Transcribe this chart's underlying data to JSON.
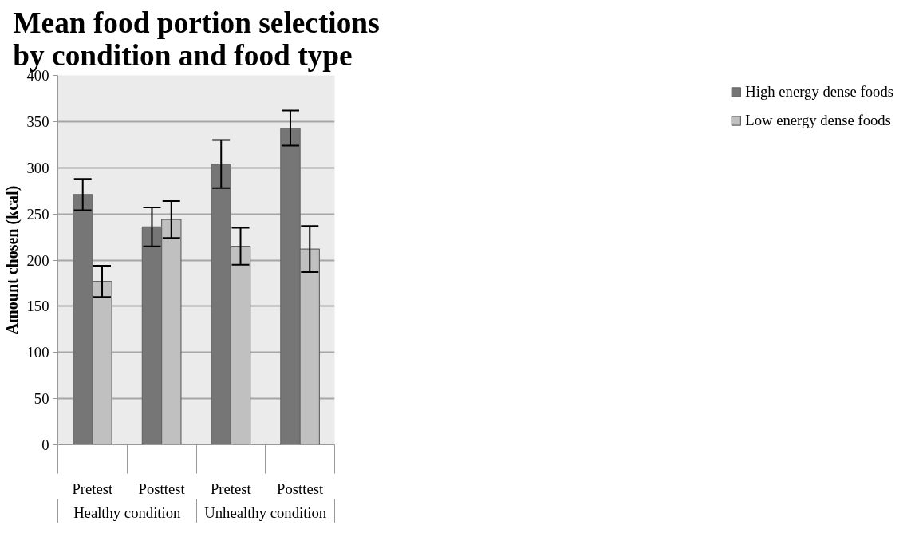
{
  "chart_data": {
    "type": "bar",
    "title": "Mean food portion selections by condition and food type",
    "ylabel": "Amount chosen (kcal)",
    "categories": [
      "Pretest",
      "Posttest",
      "Pretest",
      "Posttest"
    ],
    "annotations": [
      "Healthy condition",
      "Unhealthy condition"
    ],
    "series": [
      {
        "name": "High energy dense foods",
        "color": "#767676",
        "values": [
          271,
          236,
          304,
          343
        ],
        "errors": [
          17,
          21,
          26,
          19
        ]
      },
      {
        "name": "Low energy dense foods",
        "color": "#c0c0c0",
        "values": [
          177,
          244,
          215,
          212
        ],
        "errors": [
          17,
          20,
          20,
          25
        ]
      }
    ],
    "ylim": [
      0,
      400
    ],
    "yticks": [
      0,
      50,
      100,
      150,
      200,
      250,
      300,
      350,
      400
    ],
    "grid": "y",
    "legend": "right"
  }
}
